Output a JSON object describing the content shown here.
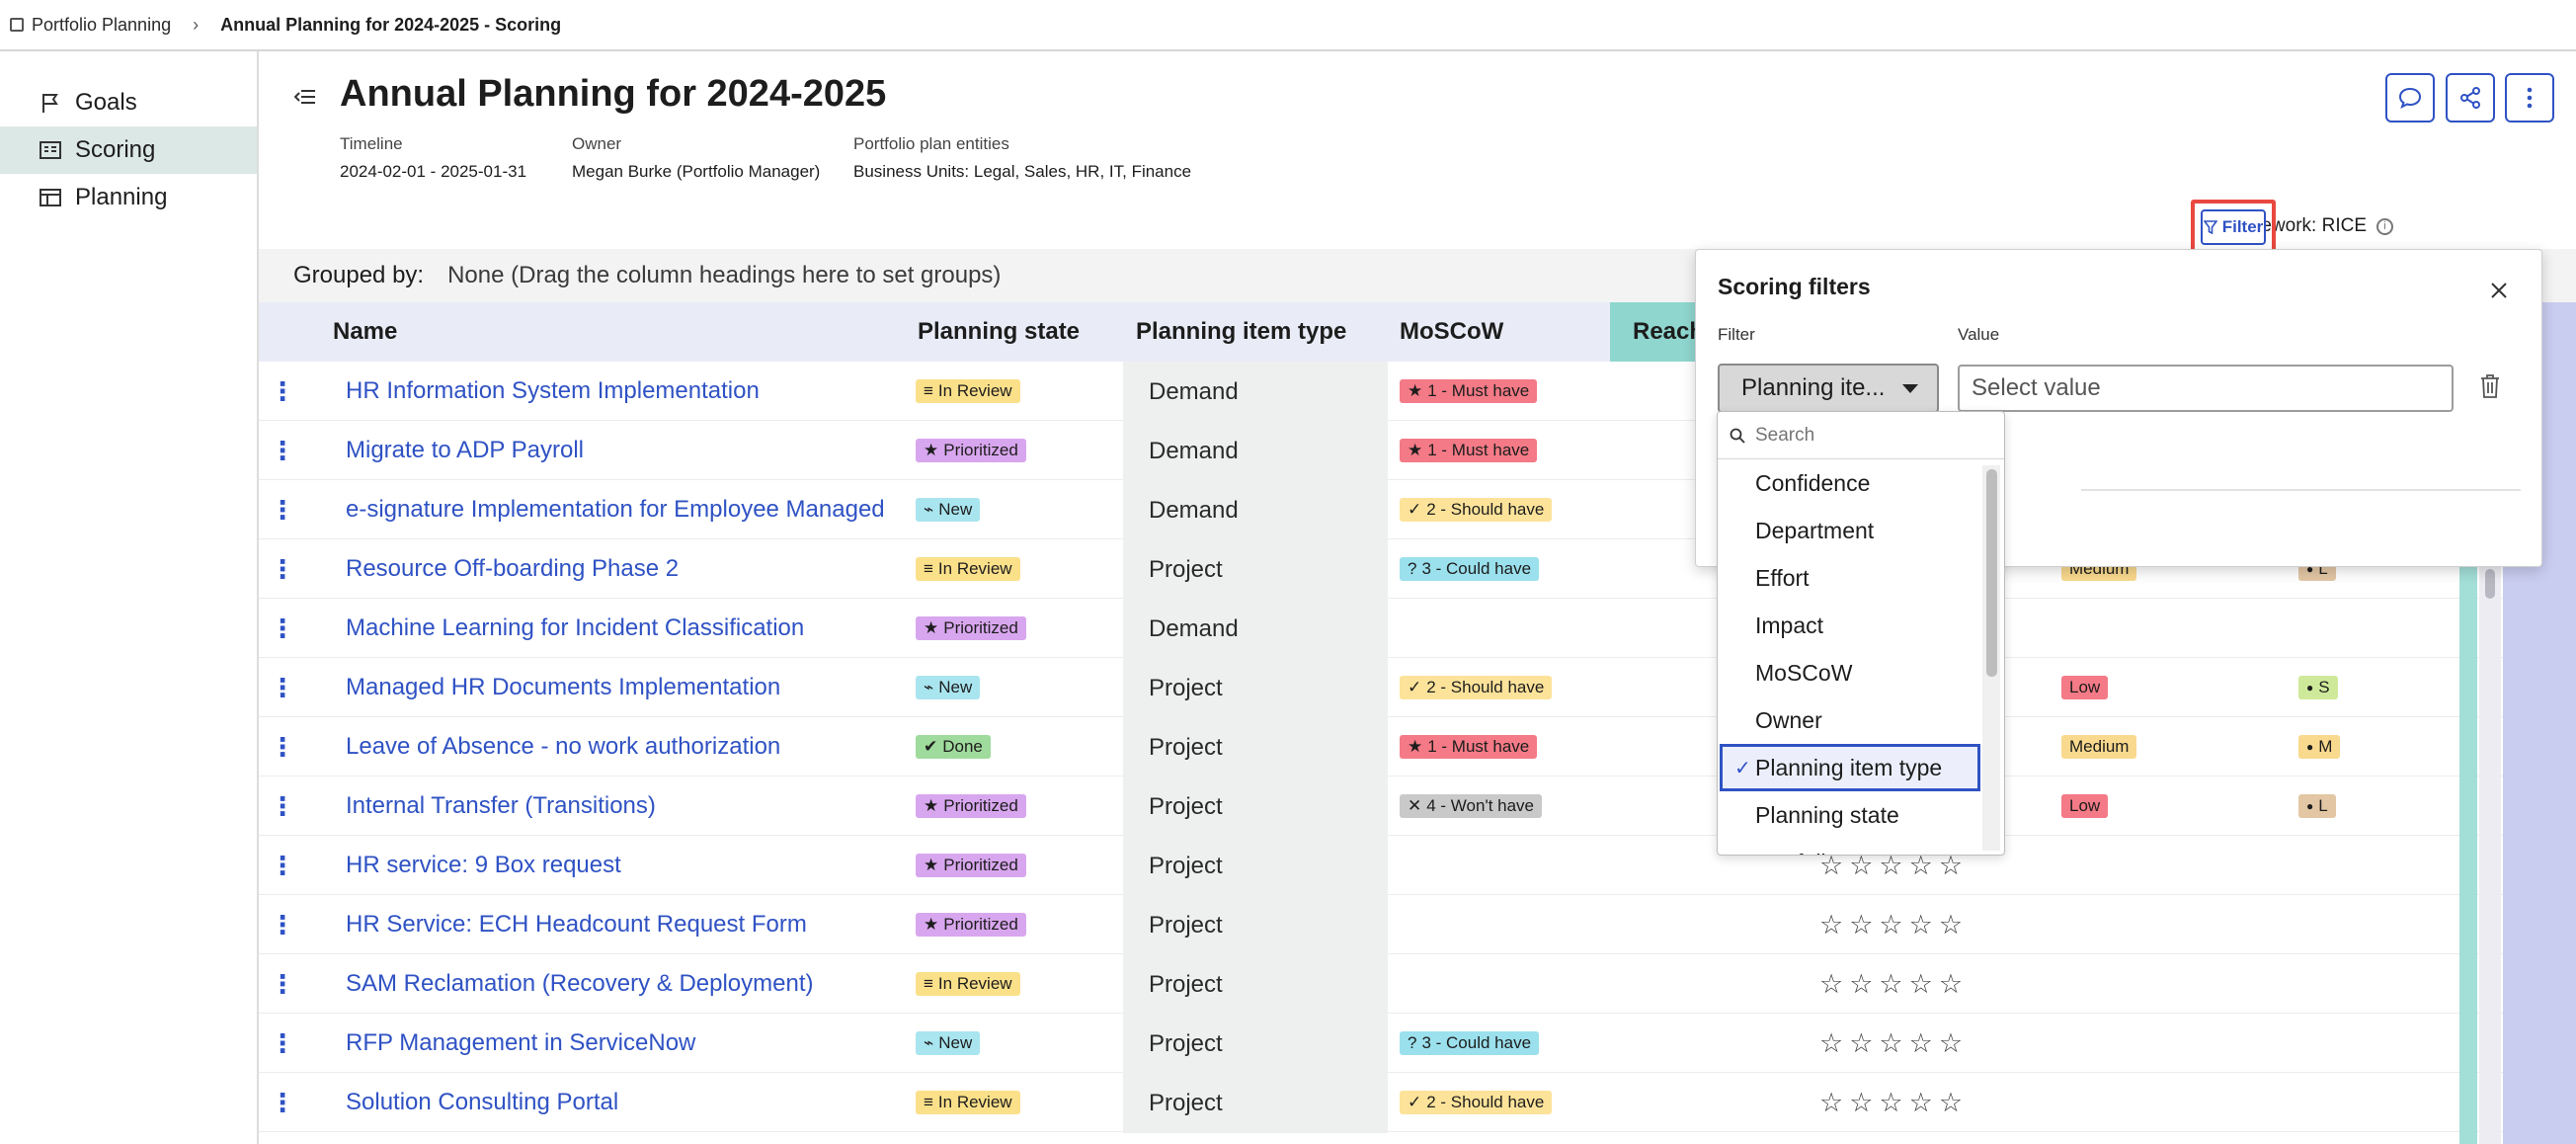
{
  "breadcrumb": {
    "parent": "Portfolio Planning",
    "current": "Annual Planning for 2024-2025 - Scoring"
  },
  "sidebar": {
    "items": [
      {
        "label": "Goals",
        "icon": "flag-icon"
      },
      {
        "label": "Scoring",
        "icon": "scoring-icon",
        "active": true
      },
      {
        "label": "Planning",
        "icon": "planning-icon"
      }
    ]
  },
  "header": {
    "title": "Annual Planning for 2024-2025",
    "meta": [
      {
        "label": "Timeline",
        "value": "2024-02-01 - 2025-01-31"
      },
      {
        "label": "Owner",
        "value": "Megan Burke (Portfolio Manager)"
      },
      {
        "label": "Portfolio plan entities",
        "value": "Business Units: Legal, Sales, HR, IT, Finance"
      }
    ],
    "framework": "Framework: RICE",
    "filter_label": "Filter"
  },
  "grouping": {
    "label": "Grouped by:",
    "value": "None (Drag the column headings here to set groups)"
  },
  "columns": [
    "Name",
    "Planning state",
    "Planning item type",
    "MoSCoW",
    "Reach"
  ],
  "rows": [
    {
      "name": "HR Information System Implementation",
      "state": "In Review",
      "type": "Demand",
      "moscow": "1 - Must have"
    },
    {
      "name": "Migrate to ADP Payroll",
      "state": "Prioritized",
      "type": "Demand",
      "moscow": "1 - Must have"
    },
    {
      "name": "e-signature Implementation for Employee Managed",
      "state": "New",
      "type": "Demand",
      "moscow": "2 - Should have"
    },
    {
      "name": "Resource Off-boarding Phase 2",
      "state": "In Review",
      "type": "Project",
      "moscow": "3 - Could have",
      "impact": "Medium",
      "effort": "L"
    },
    {
      "name": "Machine Learning for Incident Classification",
      "state": "Prioritized",
      "type": "Demand",
      "moscow": ""
    },
    {
      "name": "Managed HR Documents Implementation",
      "state": "New",
      "type": "Project",
      "moscow": "2 - Should have",
      "impact": "Low",
      "effort": "S"
    },
    {
      "name": "Leave of Absence - no work authorization",
      "state": "Done",
      "type": "Project",
      "moscow": "1 - Must have",
      "impact": "Medium",
      "effort": "M"
    },
    {
      "name": "Internal Transfer (Transitions)",
      "state": "Prioritized",
      "type": "Project",
      "moscow": "4 - Won't have",
      "impact": "Low",
      "effort": "L"
    },
    {
      "name": "HR service: 9 Box request",
      "state": "Prioritized",
      "type": "Project",
      "moscow": "",
      "stars": "☆☆☆☆☆"
    },
    {
      "name": "HR Service: ECH Headcount Request Form",
      "state": "Prioritized",
      "type": "Project",
      "moscow": "",
      "stars": "☆☆☆☆☆"
    },
    {
      "name": "SAM Reclamation (Recovery & Deployment)",
      "state": "In Review",
      "type": "Project",
      "moscow": "",
      "stars": "☆☆☆☆☆"
    },
    {
      "name": "RFP Management in ServiceNow",
      "state": "New",
      "type": "Project",
      "moscow": "3 - Could have",
      "stars": "☆☆☆☆☆"
    },
    {
      "name": "Solution Consulting Portal",
      "state": "In Review",
      "type": "Project",
      "moscow": "2 - Should have",
      "stars": "☆☆☆☆☆"
    }
  ],
  "filter_panel": {
    "title": "Scoring filters",
    "filter_label": "Filter",
    "value_label": "Value",
    "selected_filter": "Planning ite...",
    "value_placeholder": "Select value",
    "search_placeholder": "Search",
    "options": [
      "Confidence",
      "Department",
      "Effort",
      "Impact",
      "MoSCoW",
      "Owner",
      "Planning item type",
      "Planning state",
      "Portfolio"
    ],
    "selected_option": "Planning item type"
  },
  "colors": {
    "accent": "#2f52c4",
    "highlight_border": "#e8483f",
    "active_nav": "#dce8e6"
  }
}
